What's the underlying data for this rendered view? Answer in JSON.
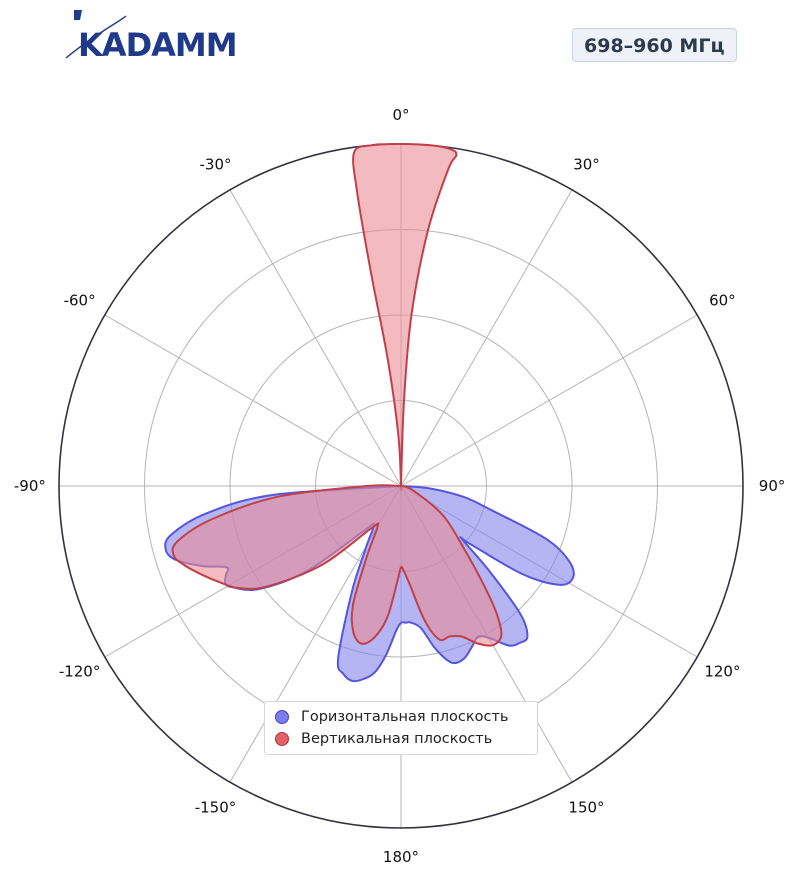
{
  "brand": {
    "logo_text": "KADAMM"
  },
  "header": {
    "band": "698–960 МГц"
  },
  "chart_data": {
    "type": "polar",
    "theta_zero": "top",
    "theta_direction": "clockwise",
    "angle_ticks": [
      {
        "deg": 0,
        "label": "0°"
      },
      {
        "deg": 30,
        "label": "30°"
      },
      {
        "deg": 60,
        "label": "60°"
      },
      {
        "deg": 90,
        "label": "90°"
      },
      {
        "deg": 120,
        "label": "120°"
      },
      {
        "deg": 150,
        "label": "150°"
      },
      {
        "deg": 180,
        "label": "180°"
      },
      {
        "deg": 210,
        "label": "-150°"
      },
      {
        "deg": 240,
        "label": "-120°"
      },
      {
        "deg": 270,
        "label": "-90°"
      },
      {
        "deg": 300,
        "label": "-60°"
      },
      {
        "deg": 330,
        "label": "-30°"
      }
    ],
    "radial_range": [
      0,
      4
    ],
    "radial_grid": [
      1,
      2,
      3,
      4
    ],
    "radial_tick_labels": false,
    "grid": true,
    "legend_position": "lower-center",
    "series": [
      {
        "name": "Горизонтальная плоскость",
        "color": "#5555dd",
        "fill": "#8888ee",
        "points": [
          [
            90,
            0
          ],
          [
            95,
            0.35
          ],
          [
            100,
            0.75
          ],
          [
            105,
            1.1
          ],
          [
            110,
            1.8
          ],
          [
            114,
            2.15
          ],
          [
            118,
            2.28
          ],
          [
            122,
            2.18
          ],
          [
            126,
            1.75
          ],
          [
            130,
            1.05
          ],
          [
            131,
            0.95
          ],
          [
            134,
            1.45
          ],
          [
            137,
            2.05
          ],
          [
            140,
            2.3
          ],
          [
            143,
            2.3
          ],
          [
            146,
            2.25
          ],
          [
            150,
            2.05
          ],
          [
            153,
            1.98
          ],
          [
            156,
            2.05
          ],
          [
            160,
            2.15
          ],
          [
            164,
            2.15
          ],
          [
            168,
            1.95
          ],
          [
            172,
            1.68
          ],
          [
            176,
            1.6
          ],
          [
            178,
            1.6
          ],
          [
            180,
            1.6
          ],
          [
            182,
            1.7
          ],
          [
            185,
            1.98
          ],
          [
            188,
            2.2
          ],
          [
            191,
            2.3
          ],
          [
            194,
            2.35
          ],
          [
            197,
            2.3
          ],
          [
            200,
            2.15
          ],
          [
            205,
            1.35
          ],
          [
            210,
            0.8
          ],
          [
            215,
            0.55
          ],
          [
            220,
            0.7
          ],
          [
            228,
            1.5
          ],
          [
            234,
            2.05
          ],
          [
            239,
            2.3
          ],
          [
            241,
            2.35
          ],
          [
            243,
            2.3
          ],
          [
            245,
            2.25
          ],
          [
            248,
            2.5
          ],
          [
            252,
            2.78
          ],
          [
            255,
            2.85
          ],
          [
            258,
            2.75
          ],
          [
            262,
            2.3
          ],
          [
            266,
            1.5
          ],
          [
            270,
            0
          ]
        ]
      },
      {
        "name": "Вертикальная плоскость",
        "color": "#c0404a",
        "fill": "#ea8a90",
        "points": [
          [
            0,
            0
          ],
          [
            2,
            1.0
          ],
          [
            3.5,
            2.0
          ],
          [
            6,
            3.0
          ],
          [
            8.5,
            3.75
          ],
          [
            9.5,
            3.92
          ],
          [
            8.5,
            3.98
          ],
          [
            5,
            4.0
          ],
          [
            0,
            4.0
          ],
          [
            -5,
            4.0
          ],
          [
            -8,
            3.94
          ],
          [
            -8.5,
            3.5
          ],
          [
            -8,
            2.5
          ],
          [
            -6,
            1.5
          ],
          [
            -3,
            0.6
          ],
          [
            0,
            0
          ],
          [
            0,
            0
          ]
        ]
      },
      {
        "name": "_vertical_rear",
        "color": "#c0404a",
        "fill": "#ea8a90",
        "points": [
          [
            90,
            0
          ],
          [
            110,
            0.15
          ],
          [
            125,
            0.6
          ],
          [
            135,
            1.05
          ],
          [
            140,
            1.5
          ],
          [
            143,
            1.85
          ],
          [
            146,
            2.1
          ],
          [
            150,
            2.15
          ],
          [
            154,
            2.05
          ],
          [
            158,
            1.9
          ],
          [
            162,
            1.85
          ],
          [
            166,
            1.85
          ],
          [
            170,
            1.6
          ],
          [
            175,
            1.15
          ],
          [
            178,
            1.0
          ],
          [
            180,
            0.95
          ],
          [
            182,
            1.1
          ],
          [
            186,
            1.55
          ],
          [
            190,
            1.8
          ],
          [
            194,
            1.9
          ],
          [
            198,
            1.8
          ],
          [
            202,
            1.5
          ],
          [
            206,
            0.9
          ],
          [
            210,
            0.55
          ],
          [
            215,
            0.6
          ],
          [
            225,
            1.3
          ],
          [
            233,
            1.95
          ],
          [
            238,
            2.25
          ],
          [
            242,
            2.4
          ],
          [
            246,
            2.55
          ],
          [
            250,
            2.7
          ],
          [
            253,
            2.78
          ],
          [
            256,
            2.7
          ],
          [
            260,
            2.25
          ],
          [
            265,
            1.45
          ],
          [
            270,
            0.4
          ],
          [
            275,
            0
          ]
        ]
      }
    ]
  },
  "legend": {
    "items": [
      {
        "label": "Горизонтальная плоскость",
        "color": "#7b7bee",
        "border": "#4747c8"
      },
      {
        "label": "Вертикальная плоскость",
        "color": "#e06168",
        "border": "#b5353c"
      }
    ]
  }
}
